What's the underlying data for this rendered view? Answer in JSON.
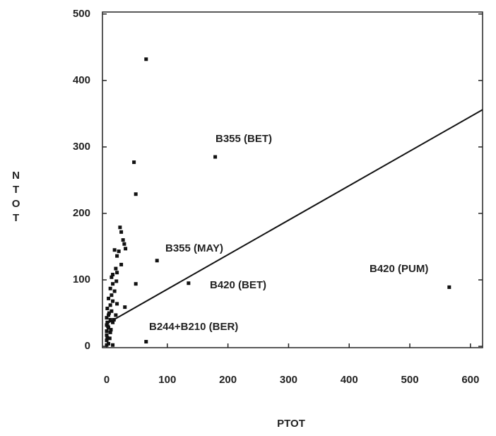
{
  "chart_data": {
    "type": "scatter",
    "x_label": "PTOT",
    "y_label": "NTOT",
    "xlim": [
      -7,
      620
    ],
    "ylim": [
      -2,
      503
    ],
    "xticks": [
      0,
      100,
      200,
      300,
      400,
      500,
      600
    ],
    "yticks": [
      0,
      100,
      200,
      300,
      400,
      500
    ],
    "color": "#111111",
    "x": [
      65,
      179,
      45,
      48,
      83,
      48,
      135,
      565,
      65,
      30,
      22,
      24,
      27,
      29,
      31,
      20,
      13,
      17,
      24,
      15,
      17,
      10,
      8,
      16,
      10,
      6,
      13,
      8,
      3,
      10,
      6,
      1,
      8,
      3,
      0,
      6,
      1,
      10,
      0,
      3,
      0,
      6,
      0,
      1,
      0,
      3,
      0,
      10,
      15,
      17,
      4,
      2,
      5,
      7,
      12
    ],
    "y": [
      432,
      285,
      277,
      229,
      129,
      94,
      95,
      89,
      7,
      59,
      179,
      172,
      160,
      154,
      147,
      143,
      145,
      136,
      123,
      117,
      111,
      108,
      104,
      98,
      94,
      87,
      83,
      77,
      72,
      68,
      62,
      57,
      53,
      47,
      43,
      40,
      36,
      36,
      32,
      28,
      23,
      21,
      17,
      13,
      9,
      4,
      2,
      2,
      47,
      64,
      50,
      30,
      12,
      25,
      40
    ],
    "fit_line": {
      "x": [
        0,
        620
      ],
      "y": [
        34,
        356
      ]
    },
    "annotations": [
      "B355 (BET)",
      "B355 (MAY)",
      "B420 (BET)",
      "B420 (PUM)",
      "B244+B210 (BER)"
    ]
  }
}
